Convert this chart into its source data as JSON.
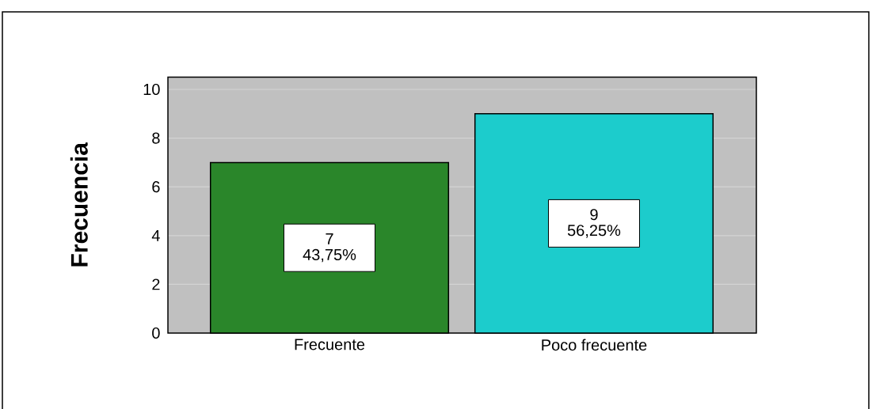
{
  "chart_data": {
    "type": "bar",
    "ylabel": "Frecuencia",
    "categories": [
      "Frecuente",
      "Poco frecuente"
    ],
    "values": [
      7,
      9
    ],
    "colors": [
      "#2a862a",
      "#1ccccc"
    ],
    "value_labels": [
      "7 43,75%",
      "9 56,25%"
    ],
    "ylim": [
      0,
      10.5
    ],
    "yticks": [
      0,
      2,
      4,
      6,
      8,
      10
    ],
    "grid": "y"
  }
}
